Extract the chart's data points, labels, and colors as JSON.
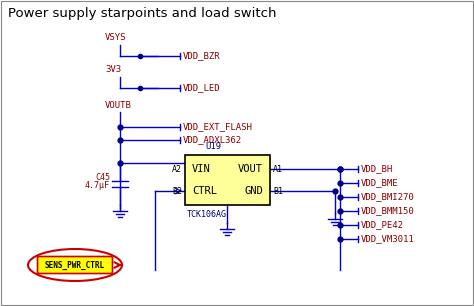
{
  "title": "Power supply starpoints and load switch",
  "bg_color": "#ffffff",
  "border_color": "#888888",
  "wire_color": "#0000cc",
  "label_color": "#8b0000",
  "ic_fill": "#ffff99",
  "ic_border": "#000000",
  "ic_text_color": "#000000",
  "sens_fill": "#ffff00",
  "sens_border": "#cc0000",
  "dot_color": "#00008b",
  "title_fontsize": 9.5,
  "label_fontsize": 6.5,
  "small_fontsize": 6.0,
  "vsys_label": "VSYS",
  "v3v3_label": "3V3",
  "voutb_label": "VOUTB",
  "vdd_bzr": "VDD_BZR",
  "vdd_led": "VDD_LED",
  "vdd_ext_flash": "VDD_EXT_FLASH",
  "vdd_adxl362": "VDD_ADXL362",
  "ic_name": "U19",
  "ic_vin": "VIN",
  "ic_vout": "VOUT",
  "ic_ctrl": "CTRL",
  "ic_gnd": "GND",
  "ic_part": "TCK106AG",
  "pin_a2": "A2",
  "pin_b2": "B2",
  "pin_a1": "A1",
  "pin_b1": "B1",
  "cap_name": "C45",
  "cap_val": "4.7μF",
  "right_labels": [
    "VDD_BH",
    "VDD_BME",
    "VDD_BMI270",
    "VDD_BMM150",
    "VDD_PE42",
    "VDD_VM3011"
  ],
  "sens_label": "SENS_PWR_CTRL"
}
